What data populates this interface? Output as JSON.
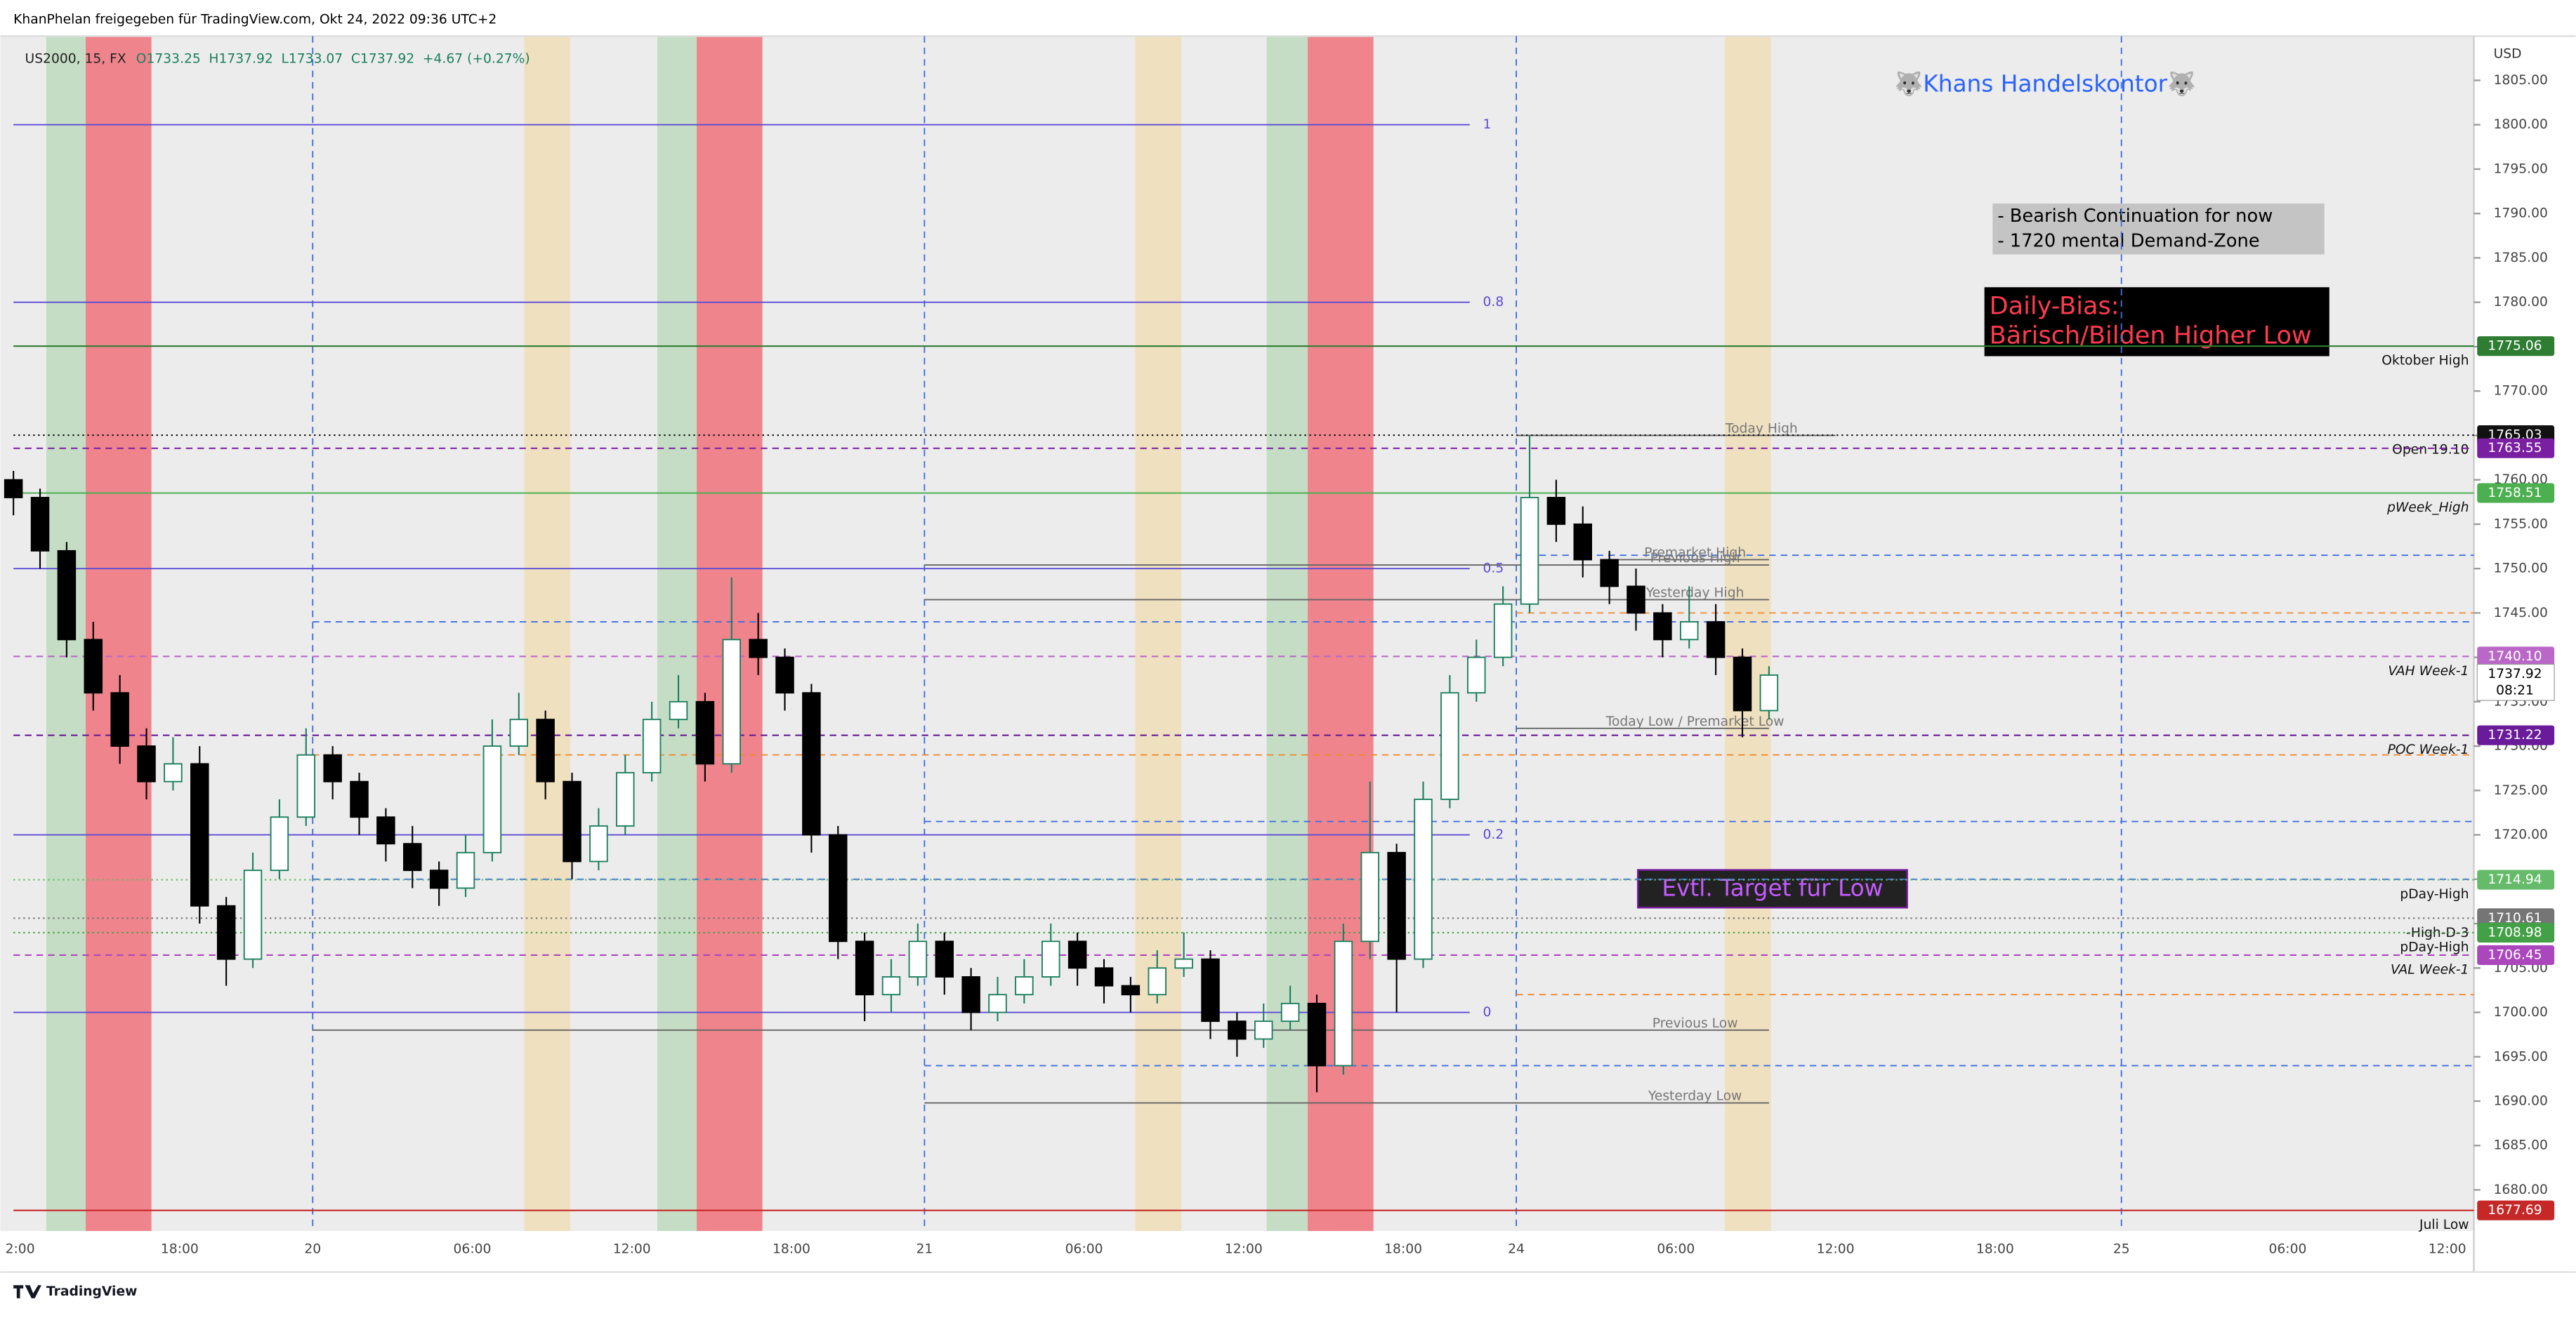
{
  "header": {
    "title": "KhanPhelan freigegeben für TradingView.com, Okt 24, 2022 09:36 UTC+2",
    "footer": "TradingView"
  },
  "chart_data": {
    "type": "candlestick",
    "symbol": "US2000, 15, FX",
    "ohlc_legend": [
      "O1733.25",
      "H1737.92",
      "L1733.07",
      "C1737.92",
      "+4.67 (+0.27%)"
    ],
    "currency": "USD",
    "ylim": [
      1675,
      1810
    ],
    "yticks": [
      {
        "value": 1680,
        "label": "1680.00"
      },
      {
        "value": 1685,
        "label": "1685.00"
      },
      {
        "value": 1690,
        "label": "1690.00"
      },
      {
        "value": 1695,
        "label": "1695.00"
      },
      {
        "value": 1700,
        "label": "1700.00"
      },
      {
        "value": 1705,
        "label": "1705.00"
      },
      {
        "value": 1710,
        "label": "1710.00"
      },
      {
        "value": 1715,
        "label": "1715.00"
      },
      {
        "value": 1720,
        "label": "1720.00"
      },
      {
        "value": 1725,
        "label": "1725.00"
      },
      {
        "value": 1730,
        "label": "1730.00"
      },
      {
        "value": 1735,
        "label": "1735.00"
      },
      {
        "value": 1740,
        "label": "1740.00"
      },
      {
        "value": 1745,
        "label": "1745.00"
      },
      {
        "value": 1750,
        "label": "1750.00"
      },
      {
        "value": 1755,
        "label": "1755.00"
      },
      {
        "value": 1760,
        "label": "1760.00"
      },
      {
        "value": 1765,
        "label": "1765.00"
      },
      {
        "value": 1770,
        "label": "1770.00"
      },
      {
        "value": 1775,
        "label": "1775.00"
      },
      {
        "value": 1780,
        "label": "1780.00"
      },
      {
        "value": 1785,
        "label": "1785.00"
      },
      {
        "value": 1790,
        "label": "1790.00"
      },
      {
        "value": 1795,
        "label": "1795.00"
      },
      {
        "value": 1800,
        "label": "1800.00"
      },
      {
        "value": 1805,
        "label": "1805.00"
      }
    ],
    "xlim": [
      0,
      370
    ],
    "xticks": [
      {
        "value": 1,
        "label": "2:00"
      },
      {
        "value": 25,
        "label": "18:00"
      },
      {
        "value": 45,
        "label": "20"
      },
      {
        "value": 69,
        "label": "06:00"
      },
      {
        "value": 93,
        "label": "12:00"
      },
      {
        "value": 117,
        "label": "18:00"
      },
      {
        "value": 137,
        "label": "21"
      },
      {
        "value": 161,
        "label": "06:00"
      },
      {
        "value": 185,
        "label": "12:00"
      },
      {
        "value": 209,
        "label": "18:00"
      },
      {
        "value": 226,
        "label": "24"
      },
      {
        "value": 250,
        "label": "06:00"
      },
      {
        "value": 274,
        "label": "12:00"
      },
      {
        "value": 298,
        "label": "18:00"
      },
      {
        "value": 317,
        "label": "25"
      },
      {
        "value": 342,
        "label": "06:00"
      },
      {
        "value": 366,
        "label": "12:00"
      }
    ],
    "up_color": "#1b7f5f",
    "down_color": "#000000",
    "x": [
      0,
      4,
      8,
      12,
      16,
      20,
      24,
      28,
      32,
      36,
      40,
      44,
      48,
      52,
      56,
      60,
      64,
      68,
      72,
      76,
      80,
      84,
      88,
      92,
      96,
      100,
      104,
      108,
      112,
      116,
      120,
      124,
      128,
      132,
      136,
      140,
      144,
      148,
      152,
      156,
      160,
      164,
      168,
      172,
      176,
      180,
      184,
      188,
      192,
      196,
      200,
      204,
      208,
      212,
      216,
      220,
      224,
      228,
      232,
      236,
      240,
      244,
      248,
      252,
      256,
      260,
      264
    ],
    "ohlc": [
      [
        1760,
        1761,
        1756,
        1758
      ],
      [
        1758,
        1759,
        1750,
        1752
      ],
      [
        1752,
        1753,
        1740,
        1742
      ],
      [
        1742,
        1744,
        1734,
        1736
      ],
      [
        1736,
        1738,
        1728,
        1730
      ],
      [
        1730,
        1732,
        1724,
        1726
      ],
      [
        1726,
        1731,
        1725,
        1728
      ],
      [
        1728,
        1730,
        1710,
        1712
      ],
      [
        1712,
        1713,
        1703,
        1706
      ],
      [
        1706,
        1718,
        1705,
        1716
      ],
      [
        1716,
        1724,
        1715,
        1722
      ],
      [
        1722,
        1732,
        1721,
        1729
      ],
      [
        1729,
        1730,
        1724,
        1726
      ],
      [
        1726,
        1727,
        1720,
        1722
      ],
      [
        1722,
        1723,
        1717,
        1719
      ],
      [
        1719,
        1721,
        1714,
        1716
      ],
      [
        1716,
        1717,
        1712,
        1714
      ],
      [
        1714,
        1720,
        1713,
        1718
      ],
      [
        1718,
        1733,
        1717,
        1730
      ],
      [
        1730,
        1736,
        1729,
        1733
      ],
      [
        1733,
        1734,
        1724,
        1726
      ],
      [
        1726,
        1727,
        1715,
        1717
      ],
      [
        1717,
        1723,
        1716,
        1721
      ],
      [
        1721,
        1729,
        1720,
        1727
      ],
      [
        1727,
        1735,
        1726,
        1733
      ],
      [
        1733,
        1738,
        1732,
        1735
      ],
      [
        1735,
        1736,
        1726,
        1728
      ],
      [
        1728,
        1749,
        1727,
        1742
      ],
      [
        1742,
        1745,
        1738,
        1740
      ],
      [
        1740,
        1741,
        1734,
        1736
      ],
      [
        1736,
        1737,
        1718,
        1720
      ],
      [
        1720,
        1721,
        1706,
        1708
      ],
      [
        1708,
        1709,
        1699,
        1702
      ],
      [
        1702,
        1706,
        1700,
        1704
      ],
      [
        1704,
        1710,
        1703,
        1708
      ],
      [
        1708,
        1709,
        1702,
        1704
      ],
      [
        1704,
        1705,
        1698,
        1700
      ],
      [
        1700,
        1704,
        1699,
        1702
      ],
      [
        1702,
        1706,
        1701,
        1704
      ],
      [
        1704,
        1710,
        1703,
        1708
      ],
      [
        1708,
        1709,
        1703,
        1705
      ],
      [
        1705,
        1706,
        1701,
        1703
      ],
      [
        1703,
        1704,
        1700,
        1702
      ],
      [
        1702,
        1707,
        1701,
        1705
      ],
      [
        1705,
        1709,
        1704,
        1706
      ],
      [
        1706,
        1707,
        1697,
        1699
      ],
      [
        1699,
        1700,
        1695,
        1697
      ],
      [
        1697,
        1701,
        1696,
        1699
      ],
      [
        1699,
        1703,
        1698,
        1701
      ],
      [
        1701,
        1702,
        1691,
        1694
      ],
      [
        1694,
        1710,
        1693,
        1708
      ],
      [
        1708,
        1726,
        1706,
        1718
      ],
      [
        1718,
        1719,
        1700,
        1706
      ],
      [
        1706,
        1726,
        1705,
        1724
      ],
      [
        1724,
        1738,
        1723,
        1736
      ],
      [
        1736,
        1742,
        1735,
        1740
      ],
      [
        1740,
        1748,
        1739,
        1746
      ],
      [
        1746,
        1765,
        1745,
        1758
      ],
      [
        1758,
        1760,
        1753,
        1755
      ],
      [
        1755,
        1757,
        1749,
        1751
      ],
      [
        1751,
        1752,
        1746,
        1748
      ],
      [
        1748,
        1750,
        1743,
        1745
      ],
      [
        1745,
        1746,
        1740,
        1742
      ],
      [
        1742,
        1748,
        1741,
        1744
      ],
      [
        1744,
        1746,
        1738,
        1740
      ],
      [
        1740,
        1741,
        1731,
        1734
      ],
      [
        1734,
        1739,
        1733,
        1738
      ]
    ],
    "fib": [
      {
        "level": 1,
        "price": 1800
      },
      {
        "level": 0.8,
        "price": 1780
      },
      {
        "level": 0.5,
        "price": 1750
      },
      {
        "level": 0.2,
        "price": 1720
      },
      {
        "level": 0,
        "price": 1700
      }
    ],
    "fib_end": 219,
    "fib_color": "#5c4bd6",
    "levels": [
      {
        "label": "Oktober High",
        "price": 1775.06,
        "color": "#2e7d32",
        "style": "solid"
      },
      {
        "label": "Open 19.10",
        "price": 1765.03,
        "color": "#111111",
        "style": "dotted"
      },
      {
        "price": 1763.55,
        "color": "#7b1fa2",
        "style": "dashed"
      },
      {
        "label": "pWeek_High",
        "price": 1758.51,
        "color": "#4caf50",
        "style": "solid"
      },
      {
        "label": "VAH Week-1",
        "price": 1740.1,
        "tag": "1740.10",
        "color": "#ba68c8",
        "style": "dashed"
      },
      {
        "label": "POC Week-1",
        "price": 1731.22,
        "color": "#6a1b9a",
        "style": "dashed"
      },
      {
        "label": "pDay-High",
        "price": 1714.94,
        "color": "#66bb6a",
        "style": "dotted"
      },
      {
        "label": "-High-D-3",
        "price": 1710.61,
        "color": "#757575",
        "style": "dotted"
      },
      {
        "label": "pDay-High",
        "price": 1708.98,
        "color": "#43a047",
        "style": "dotted"
      },
      {
        "label": "VAL Week-1",
        "price": 1706.45,
        "color": "#ab47bc",
        "style": "dashed"
      },
      {
        "label": "Juli Low",
        "price": 1677.69,
        "color": "#c62828",
        "style": "solid"
      }
    ],
    "sessions": [
      {
        "label": "Today High",
        "price": 1765,
        "from": 226,
        "to": 274
      },
      {
        "label": "Premarket High",
        "price": 1751,
        "from": 240,
        "to": 264
      },
      {
        "label": "Previous High",
        "price": 1750.4,
        "from": 137,
        "to": 264
      },
      {
        "label": "Yesterday High",
        "price": 1746.5,
        "from": 137,
        "to": 264
      },
      {
        "label": "Today Low / Premarket Low",
        "price": 1732,
        "from": 226,
        "to": 264
      },
      {
        "label": "Previous Low",
        "price": 1698,
        "from": 45,
        "to": 264
      },
      {
        "label": "Yesterday Low",
        "price": 1689.8,
        "from": 137,
        "to": 264
      }
    ],
    "dashed": [
      {
        "price": 1751.5,
        "from": 226,
        "color": "#3f6fe0"
      },
      {
        "price": 1744,
        "from": 45,
        "color": "#3f6fe0"
      },
      {
        "price": 1721.5,
        "from": 137,
        "color": "#3f6fe0"
      },
      {
        "price": 1715,
        "from": 45,
        "color": "#3f6fe0"
      },
      {
        "price": 1694,
        "from": 137,
        "color": "#3f6fe0"
      },
      {
        "price": 1745,
        "from": 226,
        "color": "#ef8a2e"
      },
      {
        "price": 1729,
        "from": 45,
        "color": "#ef8a2e"
      },
      {
        "price": 1702,
        "from": 226,
        "color": "#ef8a2e"
      }
    ],
    "last_price": 1737.92,
    "countdown": "08:21",
    "annotations": {
      "brand": "🐺Khans Handelskontor🐺",
      "notes": [
        "- Bearish Continuation for now",
        "- 1720 mental Demand-Zone"
      ],
      "bias": [
        "Daily-Bias:",
        "Bärisch/Bilden Higher Low"
      ],
      "target": "Evtl. Target für Low"
    }
  }
}
